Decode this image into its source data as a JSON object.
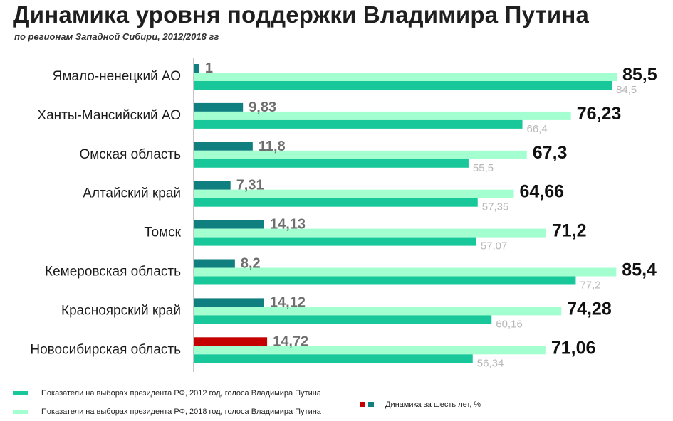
{
  "title": "Динамика уровня поддержки Владимира Путина",
  "subtitle": "по регионам Западной Сибири, 2012/2018 гг",
  "colors": {
    "y2012": "#19c89a",
    "y2018": "#a3ffd0",
    "change": "#0f7f7f",
    "change_highlight": "#c40000",
    "label2018": "#111111",
    "label2012": "#b8b8b8",
    "labelChange": "#6e6e6e"
  },
  "chart_data": {
    "type": "bar",
    "orientation": "horizontal",
    "xlim": [
      0,
      85.5
    ],
    "categories": [
      "Ямало-ненецкий АО",
      "Ханты-Мансийский АО",
      "Омская область",
      "Алтайский край",
      "Томск",
      "Кемеровская область",
      "Красноярский край",
      "Новосибирская область"
    ],
    "series": [
      {
        "name": "Динамика за шесть лет, %",
        "values": [
          1,
          9.83,
          11.8,
          7.31,
          14.13,
          8.2,
          14.12,
          14.72
        ],
        "labels": [
          "1",
          "9,83",
          "11,8",
          "7,31",
          "14,13",
          "8,2",
          "14,12",
          "14,72"
        ],
        "highlight_index": 7
      },
      {
        "name": "Показатели на выборах президента РФ, 2018 год, голоса Владимира Путина",
        "values": [
          85.5,
          76.23,
          67.3,
          64.66,
          71.2,
          85.4,
          74.28,
          71.06
        ],
        "labels": [
          "85,5",
          "76,23",
          "67,3",
          "64,66",
          "71,2",
          "85,4",
          "74,28",
          "71,06"
        ]
      },
      {
        "name": "Показатели на выборах президента РФ, 2012 год, голоса Владимира Путина",
        "values": [
          84.5,
          66.4,
          55.5,
          57.35,
          57.07,
          77.2,
          60.16,
          56.34
        ],
        "labels": [
          "84,5",
          "66,4",
          "55,5",
          "57,35",
          "57,07",
          "77,2",
          "60,16",
          "56,34"
        ]
      }
    ]
  },
  "legend": {
    "item2012": "Показатели на выборах президента РФ, 2012 год, голоса Владимира Путина",
    "item2018": "Показатели на выборах президента РФ, 2018 год, голоса Владимира Путина",
    "itemChange": "Динамика за шесть лет, %"
  }
}
